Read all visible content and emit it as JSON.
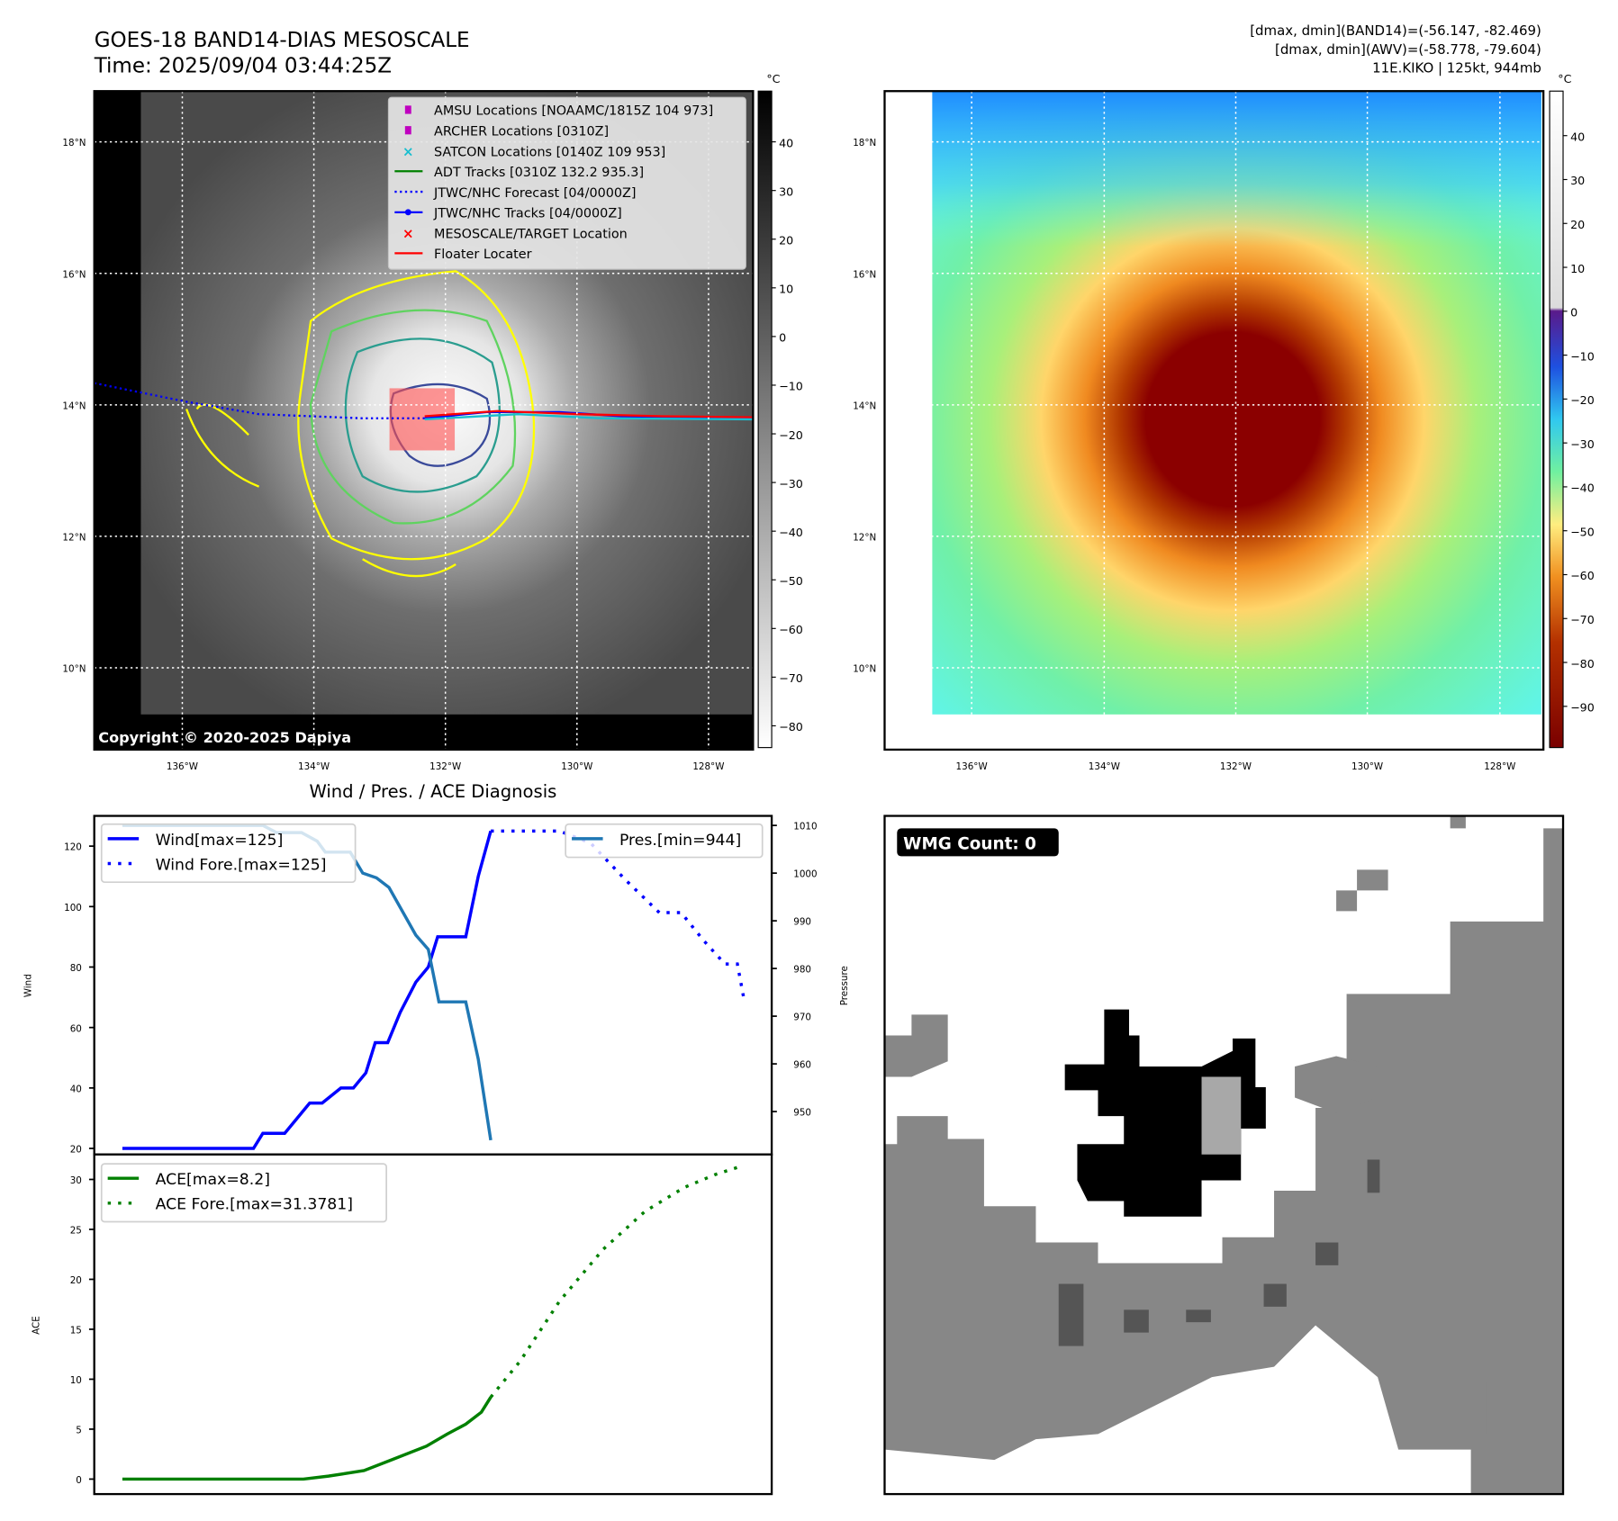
{
  "header": {
    "title": "GOES-18 BAND14-DIAS MESOSCALE",
    "time": "Time: 2025/09/04 03:44:25Z",
    "info_lines": [
      "[dmax, dmin](BAND14)=(-56.147, -82.469)",
      "[dmax, dmin](AWV)=(-58.778, -79.604)",
      "11E.KIKO | 125kt, 944mb"
    ]
  },
  "colors": {
    "wind": "#0000ff",
    "pressure": "#1f77b4",
    "ace": "#008000",
    "adt": "#008000",
    "satcon": "#17becf",
    "amsu": "#bf00bf",
    "target": "#ff0000"
  },
  "map_left": {
    "lat_labels": [
      "18°N",
      "16°N",
      "14°N",
      "12°N",
      "10°N"
    ],
    "lon_labels": [
      "136°W",
      "134°W",
      "132°W",
      "130°W",
      "128°W"
    ],
    "colorbar_unit": "°C",
    "colorbar_ticks": [
      "40",
      "30",
      "20",
      "10",
      "0",
      "−10",
      "−20",
      "−30",
      "−40",
      "−50",
      "−60",
      "−70",
      "−80"
    ],
    "copyright": "Copyright © 2020-2025 Dapiya",
    "legend": [
      {
        "icon": "square-marker",
        "label": "AMSU Locations [NOAAMC/1815Z 104 973]"
      },
      {
        "icon": "square-marker",
        "label": "ARCHER Locations [0310Z]"
      },
      {
        "icon": "x-marker",
        "label": "SATCON Locations [0140Z 109 953]"
      },
      {
        "icon": "solid-line",
        "label": "ADT Tracks [0310Z 132.2 935.3]"
      },
      {
        "icon": "dotted-line",
        "label": "JTWC/NHC Forecast [04/0000Z]"
      },
      {
        "icon": "line-dot",
        "label": "JTWC/NHC Tracks [04/0000Z]"
      },
      {
        "icon": "x-marker",
        "label": "MESOSCALE/TARGET Location"
      },
      {
        "icon": "solid-line",
        "label": "Floater Locater"
      }
    ]
  },
  "map_right": {
    "lat_labels": [
      "18°N",
      "16°N",
      "14°N",
      "12°N",
      "10°N"
    ],
    "lon_labels": [
      "136°W",
      "134°W",
      "132°W",
      "130°W",
      "128°W"
    ],
    "colorbar_unit": "°C",
    "colorbar_ticks": [
      "40",
      "30",
      "20",
      "10",
      "0",
      "−10",
      "−20",
      "−30",
      "−40",
      "−50",
      "−60",
      "−70",
      "−80",
      "−90"
    ]
  },
  "diagnosis_title": "Wind / Pres. / ACE Diagnosis",
  "wmg": {
    "label": "WMG Count: 0"
  },
  "chart_data": [
    {
      "type": "line",
      "title": "Wind / Pres. / ACE Diagnosis",
      "ylabel": "Wind",
      "y2label": "Pressure",
      "ylim": [
        18,
        130
      ],
      "y2lim": [
        941,
        1012
      ],
      "xlim": [
        -4.5,
        104
      ],
      "yticks": [
        20,
        40,
        60,
        80,
        100,
        120
      ],
      "y2ticks": [
        950,
        960,
        970,
        980,
        990,
        1000,
        1010
      ],
      "legend": [
        "Wind[max=125]",
        "Wind Fore.[max=125]",
        "Pres.[min=944]"
      ],
      "series": [
        {
          "name": "Wind[max=125]",
          "style": "solid",
          "axis": "left",
          "x": [
            0,
            21,
            22.5,
            26,
            30,
            32,
            35,
            37,
            39,
            40.5,
            42.5,
            44.5,
            47,
            49,
            50.5,
            55,
            57,
            59
          ],
          "y": [
            20,
            20,
            25,
            25,
            35,
            35,
            40,
            40,
            45,
            55,
            55,
            65,
            75,
            80,
            90,
            90,
            110,
            125
          ]
        },
        {
          "name": "Wind Fore.[max=125]",
          "style": "dotted",
          "axis": "left",
          "x": [
            59,
            70,
            75,
            80.5,
            86,
            89.5,
            93,
            96.5,
            98.5,
            99.5
          ],
          "y": [
            125,
            125,
            121,
            109,
            98,
            98,
            89,
            81,
            81,
            70
          ]
        },
        {
          "name": "Pres.[min=944]",
          "style": "solid",
          "axis": "right",
          "x": [
            0,
            22.5,
            24.7,
            28.7,
            31.2,
            32.5,
            36.5,
            38.5,
            40.7,
            42.7,
            47,
            49,
            50.7,
            55,
            57,
            59
          ],
          "y": [
            1010,
            1010,
            1008.5,
            1008.5,
            1006.7,
            1004.4,
            1004.4,
            1000,
            999,
            997,
            987,
            984,
            973,
            973,
            961,
            944
          ]
        }
      ]
    },
    {
      "type": "line",
      "ylabel": "ACE",
      "ylim": [
        -1.5,
        32.5
      ],
      "xlim": [
        -4.5,
        104
      ],
      "yticks": [
        0,
        5,
        10,
        15,
        20,
        25,
        30
      ],
      "legend": [
        "ACE[max=8.2]",
        "ACE Fore.[max=31.3781]"
      ],
      "series": [
        {
          "name": "ACE[max=8.2]",
          "style": "solid",
          "x": [
            0,
            29,
            33,
            38.7,
            43,
            48.7,
            52,
            55,
            57.5,
            59
          ],
          "y": [
            0,
            0,
            0.3,
            0.85,
            1.9,
            3.3,
            4.5,
            5.5,
            6.7,
            8.2
          ]
        },
        {
          "name": "ACE Fore.[max=31.3781]",
          "style": "dotted",
          "x": [
            59,
            63.7,
            70,
            77,
            83.7,
            90,
            95,
            99.5
          ],
          "y": [
            8.2,
            11.8,
            17.8,
            23,
            26.8,
            29.2,
            30.5,
            31.4
          ]
        }
      ]
    }
  ]
}
